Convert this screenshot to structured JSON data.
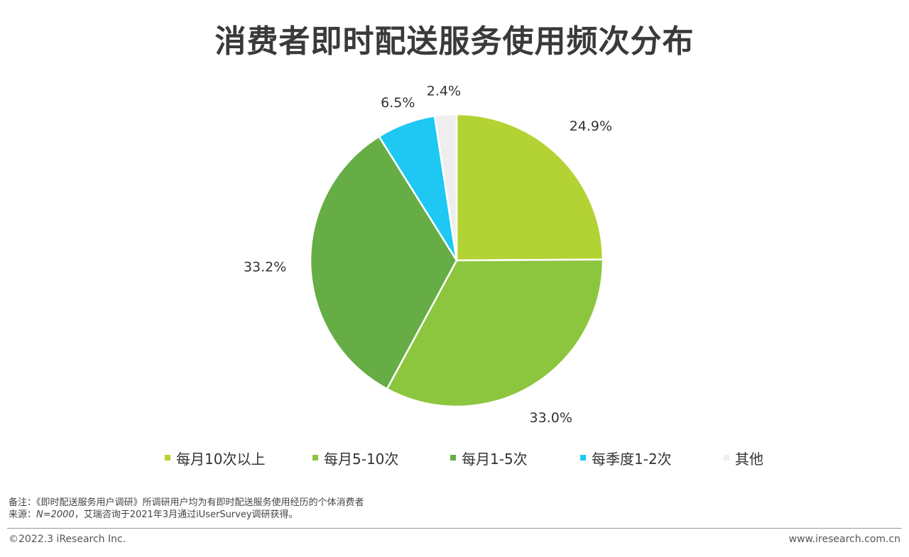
{
  "title": "消费者即时配送服务使用频次分布",
  "chart_data": {
    "type": "pie",
    "slices": [
      {
        "label": "每月10次以上",
        "value": 24.9,
        "value_label": "24.9%",
        "color": "#b3d234"
      },
      {
        "label": "每月5-10次",
        "value": 33.0,
        "value_label": "33.0%",
        "color": "#8cc63f"
      },
      {
        "label": "每月1-5次",
        "value": 33.2,
        "value_label": "33.2%",
        "color": "#66ad45"
      },
      {
        "label": "每季度1-2次",
        "value": 6.5,
        "value_label": "6.5%",
        "color": "#1ec8f2"
      },
      {
        "label": "其他",
        "value": 2.4,
        "value_label": "2.4%",
        "color": "#eeeeee"
      }
    ],
    "start": "12 o'clock",
    "direction": "clockwise",
    "legend_position": "bottom"
  },
  "notes": {
    "note_line": "备注：《即时配送服务用户调研》所调研用户均为有即时配送服务使用经历的个体消费者",
    "source_prefix": "来源：",
    "source_n": "N=2000",
    "source_rest": "，艾瑞咨询于2021年3月通过iUserSurvey调研获得。"
  },
  "footer": {
    "copyright": "©2022.3 iResearch Inc.",
    "website": "www.iresearch.com.cn"
  }
}
